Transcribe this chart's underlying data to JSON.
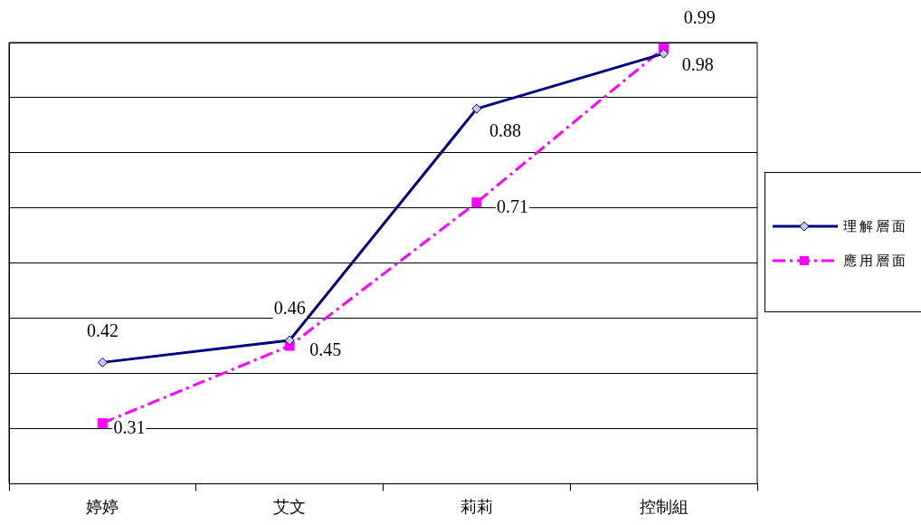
{
  "chart_data": {
    "type": "line",
    "categories": [
      "婷婷",
      "艾文",
      "莉莉",
      "控制組"
    ],
    "series": [
      {
        "name": "理解層面",
        "color": "#000080",
        "values": [
          0.42,
          0.46,
          0.88,
          0.98
        ],
        "marker": "diamond",
        "line_style": "solid"
      },
      {
        "name": "應用層面",
        "color": "#ff00ff",
        "values": [
          0.31,
          0.45,
          0.71,
          0.99
        ],
        "marker": "square",
        "line_style": "dashdot"
      }
    ],
    "ylim": [
      0.2,
      1.0
    ],
    "yticks": [
      {
        "value": 0.2,
        "label": null
      },
      {
        "value": 0.3,
        "label": null
      },
      {
        "value": 0.4,
        "label": null
      },
      {
        "value": 0.5,
        "label": null
      },
      {
        "value": 0.6,
        "label": null
      },
      {
        "value": 0.7,
        "label": null
      },
      {
        "value": 0.8,
        "label": null
      },
      {
        "value": 0.9,
        "label": null
      },
      {
        "value": 1.0,
        "label": null
      }
    ],
    "tick_labels": "x",
    "grid": "y",
    "legend": "right",
    "data_labels": true
  }
}
